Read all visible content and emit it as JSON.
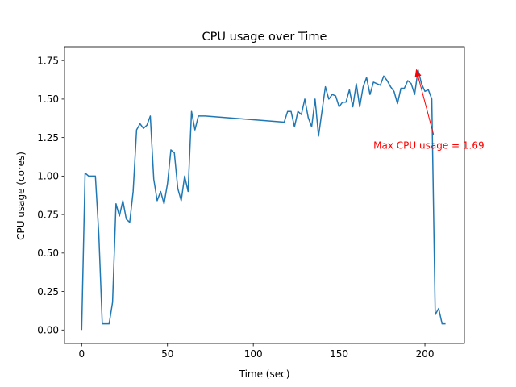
{
  "chart_data": {
    "type": "line",
    "title": "CPU usage over Time",
    "xlabel": "Time (sec)",
    "ylabel": "CPU usage (cores)",
    "xlim": [
      -10,
      223
    ],
    "ylim": [
      -0.0875,
      1.84
    ],
    "xticks": [
      0,
      50,
      100,
      150,
      200
    ],
    "yticks": [
      0.0,
      0.25,
      0.5,
      0.75,
      1.0,
      1.25,
      1.5,
      1.75
    ],
    "xtick_labels": [
      "0",
      "50",
      "100",
      "150",
      "200"
    ],
    "ytick_labels": [
      "0.00",
      "0.25",
      "0.50",
      "0.75",
      "1.00",
      "1.25",
      "1.50",
      "1.75"
    ],
    "grid": false,
    "series": [
      {
        "color": "#1f77b4",
        "x": [
          0,
          2,
          4,
          6,
          8,
          10,
          12,
          14,
          16,
          18,
          20,
          22,
          24,
          26,
          28,
          30,
          32,
          34,
          36,
          38,
          40,
          42,
          44,
          46,
          48,
          50,
          52,
          54,
          56,
          58,
          60,
          62,
          64,
          66,
          68,
          70,
          72,
          118,
          120,
          122,
          124,
          126,
          128,
          130,
          132,
          134,
          136,
          138,
          140,
          142,
          144,
          146,
          148,
          150,
          152,
          154,
          156,
          158,
          160,
          162,
          164,
          166,
          168,
          170,
          172,
          174,
          176,
          178,
          180,
          182,
          184,
          186,
          188,
          190,
          192,
          194,
          196,
          198,
          200,
          202,
          204,
          206,
          208,
          210,
          212
        ],
        "y": [
          0.0,
          1.02,
          1.0,
          1.0,
          1.0,
          0.62,
          0.04,
          0.04,
          0.04,
          0.18,
          0.82,
          0.74,
          0.84,
          0.72,
          0.7,
          0.9,
          1.3,
          1.34,
          1.31,
          1.33,
          1.39,
          0.98,
          0.84,
          0.9,
          0.82,
          0.95,
          1.17,
          1.15,
          0.92,
          0.84,
          1.0,
          0.9,
          1.42,
          1.3,
          1.39,
          1.39,
          1.39,
          1.35,
          1.42,
          1.42,
          1.32,
          1.42,
          1.4,
          1.5,
          1.38,
          1.32,
          1.5,
          1.26,
          1.42,
          1.58,
          1.5,
          1.53,
          1.52,
          1.45,
          1.48,
          1.48,
          1.56,
          1.45,
          1.6,
          1.45,
          1.58,
          1.64,
          1.53,
          1.61,
          1.6,
          1.59,
          1.65,
          1.62,
          1.58,
          1.55,
          1.47,
          1.57,
          1.57,
          1.62,
          1.6,
          1.53,
          1.69,
          1.6,
          1.55,
          1.56,
          1.5,
          0.1,
          0.14,
          0.04,
          0.04
        ]
      }
    ],
    "annotation": {
      "text": "Max CPU usage = 1.69",
      "color": "#ff0000",
      "point": [
        195,
        1.69
      ],
      "text_anchor_point": [
        170,
        1.2
      ]
    }
  }
}
